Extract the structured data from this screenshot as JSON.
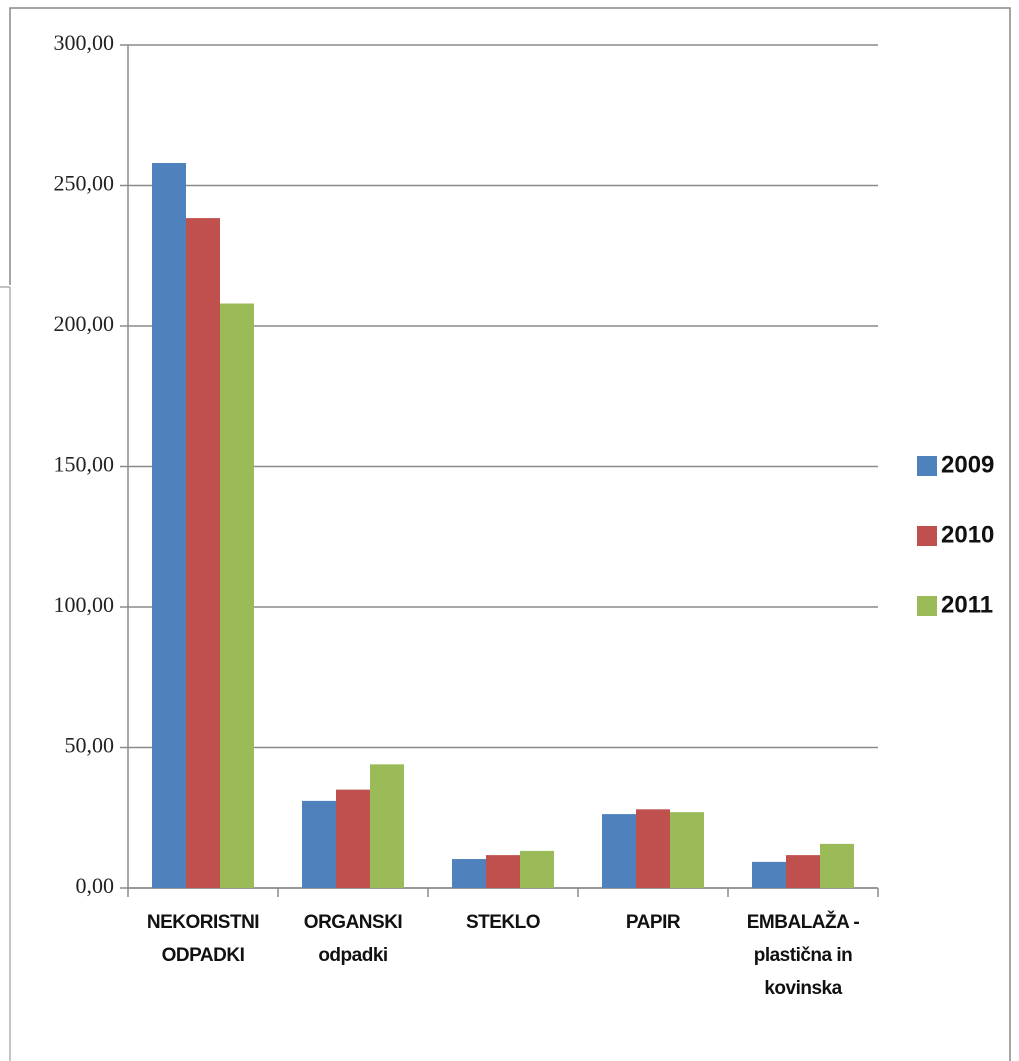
{
  "chart_data": {
    "type": "bar",
    "categories": [
      "NEKORISTNI ODPADKI",
      "ORGANSKI odpadki",
      "STEKLO",
      "PAPIR",
      "EMBALAŽA - plastična in kovinska"
    ],
    "series": [
      {
        "name": "2009",
        "color": "#4f81bd",
        "values": [
          258,
          31,
          10.3,
          26.3,
          9.3
        ]
      },
      {
        "name": "2010",
        "color": "#c0504d",
        "values": [
          238.4,
          35,
          11.7,
          28,
          11.7
        ]
      },
      {
        "name": "2011",
        "color": "#9bbb59",
        "values": [
          208,
          44,
          13.2,
          27,
          15.7
        ]
      }
    ],
    "ylim": [
      0,
      300
    ],
    "yticks": [
      {
        "value": 0,
        "label": "0,00"
      },
      {
        "value": 50,
        "label": "50,00"
      },
      {
        "value": 100,
        "label": "100,00"
      },
      {
        "value": 150,
        "label": "150,00"
      },
      {
        "value": 200,
        "label": "200,00"
      },
      {
        "value": 250,
        "label": "250,00"
      },
      {
        "value": 300,
        "label": "300,00"
      }
    ],
    "grid": true,
    "legend": "right"
  }
}
